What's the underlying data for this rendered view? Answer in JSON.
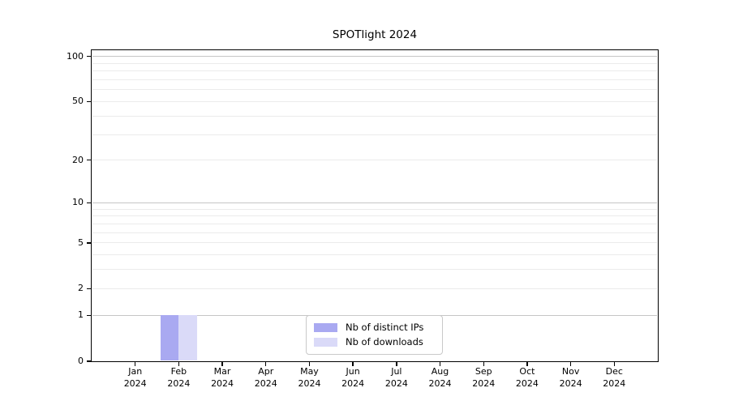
{
  "chart_data": {
    "type": "bar",
    "title": "SPOTlight 2024",
    "categories": [
      "Jan 2024",
      "Feb 2024",
      "Mar 2024",
      "Apr 2024",
      "May 2024",
      "Jun 2024",
      "Jul 2024",
      "Aug 2024",
      "Sep 2024",
      "Oct 2024",
      "Nov 2024",
      "Dec 2024"
    ],
    "series": [
      {
        "name": "Nb of distinct IPs",
        "color": "#a9a9f1",
        "values": [
          0,
          1,
          0,
          0,
          0,
          0,
          0,
          0,
          0,
          0,
          0,
          0
        ]
      },
      {
        "name": "Nb of downloads",
        "color": "#dadaf8",
        "values": [
          0,
          1,
          0,
          0,
          0,
          0,
          0,
          0,
          0,
          0,
          0,
          0
        ]
      }
    ],
    "xlabel": "",
    "ylabel": "",
    "y_scale": "log10(value+1)",
    "ylim": [
      0,
      110
    ],
    "y_tick_labels": [
      0,
      1,
      2,
      5,
      10,
      20,
      50,
      100
    ],
    "y_major_gridlines": [
      1,
      10,
      100
    ],
    "y_minor_gridlines": [
      2,
      3,
      4,
      5,
      6,
      7,
      8,
      9,
      20,
      30,
      40,
      50,
      60,
      70,
      80,
      90
    ],
    "grid_major_color": "#c6c6c6",
    "grid_minor_color": "#ebebeb",
    "axis_color": "#000000",
    "legend_position": "lower center inside plot",
    "grid": "on"
  }
}
